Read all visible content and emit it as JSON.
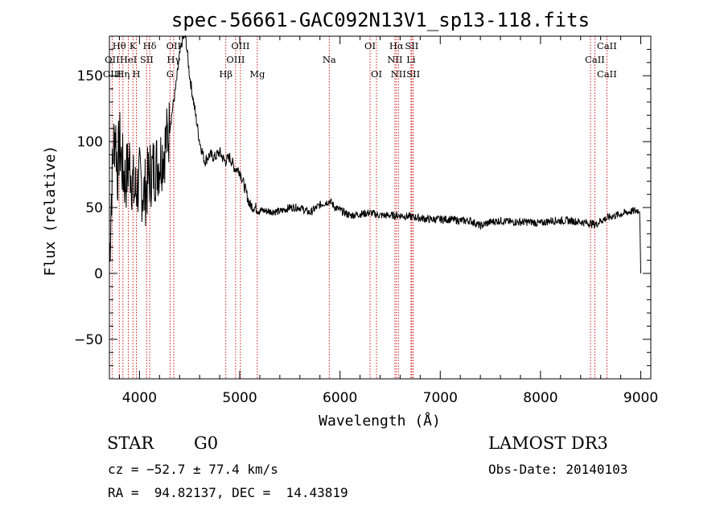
{
  "chart_data": {
    "type": "line",
    "title": "spec-56661-GAC092N13V1_sp13-118.fits",
    "xlabel": "Wavelength (Å)",
    "ylabel": "Flux (relative)",
    "xlim": [
      3700,
      9100
    ],
    "ylim": [
      -80,
      180
    ],
    "xticks": [
      4000,
      5000,
      6000,
      7000,
      8000,
      9000
    ],
    "xtick_labels": [
      "4000",
      "5000",
      "6000",
      "7000",
      "8000",
      "9000"
    ],
    "yticks": [
      -50,
      0,
      50,
      100,
      150
    ],
    "ytick_labels": [
      "−50",
      "0",
      "50",
      "100",
      "150"
    ],
    "spectrum_profile": {
      "x": [
        3700,
        3720,
        3740,
        3760,
        3780,
        3800,
        3830,
        3860,
        3900,
        3950,
        4000,
        4050,
        4100,
        4150,
        4200,
        4250,
        4300,
        4330,
        4360,
        4400,
        4430,
        4460,
        4500,
        4550,
        4600,
        4650,
        4700,
        4750,
        4800,
        4850,
        4900,
        4950,
        5000,
        5050,
        5100,
        5150,
        5200,
        5300,
        5400,
        5500,
        5600,
        5700,
        5800,
        5900,
        5950,
        6000,
        6100,
        6200,
        6300,
        6400,
        6500,
        6600,
        6700,
        6800,
        6900,
        7000,
        7100,
        7200,
        7300,
        7400,
        7500,
        7600,
        7700,
        7800,
        7900,
        8000,
        8100,
        8200,
        8300,
        8400,
        8500,
        8550,
        8600,
        8700,
        8800,
        8900,
        8990,
        9000
      ],
      "y": [
        10,
        60,
        95,
        110,
        75,
        100,
        80,
        70,
        85,
        60,
        70,
        60,
        75,
        80,
        85,
        95,
        110,
        125,
        140,
        165,
        178,
        180,
        150,
        125,
        100,
        85,
        90,
        88,
        92,
        85,
        88,
        80,
        78,
        65,
        52,
        50,
        48,
        47,
        47,
        50,
        50,
        46,
        52,
        55,
        50,
        48,
        44,
        45,
        46,
        44,
        44,
        44,
        43,
        42,
        41,
        41,
        41,
        40,
        40,
        36,
        39,
        40,
        39,
        39,
        39,
        38,
        40,
        40,
        40,
        39,
        38,
        37,
        40,
        43,
        45,
        47,
        48,
        0
      ]
    },
    "emission_lines": [
      {
        "label": "Hθ",
        "wavelength": 3798,
        "row": 0
      },
      {
        "label": "K",
        "wavelength": 3934,
        "row": 0
      },
      {
        "label": "Hδ",
        "wavelength": 4102,
        "row": 0
      },
      {
        "label": "OII",
        "wavelength": 4341,
        "row": 0
      },
      {
        "label": "OIII",
        "wavelength": 5007,
        "row": 0
      },
      {
        "label": "OI",
        "wavelength": 6300,
        "row": 0
      },
      {
        "label": "Hα",
        "wavelength": 6563,
        "row": 0
      },
      {
        "label": "SII",
        "wavelength": 6716,
        "row": 0
      },
      {
        "label": "CaII",
        "wavelength": 8662,
        "row": 0
      },
      {
        "label": "OII",
        "wavelength": 3727,
        "row": 1
      },
      {
        "label": "HeI",
        "wavelength": 3889,
        "row": 1
      },
      {
        "label": "SII",
        "wavelength": 4072,
        "row": 1
      },
      {
        "label": "Hγ",
        "wavelength": 4341,
        "row": 1
      },
      {
        "label": "OIII",
        "wavelength": 4959,
        "row": 1
      },
      {
        "label": "Na",
        "wavelength": 5893,
        "row": 1
      },
      {
        "label": "NII",
        "wavelength": 6548,
        "row": 1
      },
      {
        "label": "Li",
        "wavelength": 6708,
        "row": 1
      },
      {
        "label": "CaII",
        "wavelength": 8542,
        "row": 1
      },
      {
        "label": "OIII",
        "wavelength": 3727,
        "row": 2
      },
      {
        "label": "Hη",
        "wavelength": 3835,
        "row": 2
      },
      {
        "label": "H",
        "wavelength": 3969,
        "row": 2
      },
      {
        "label": "G",
        "wavelength": 4305,
        "row": 2
      },
      {
        "label": "Hβ",
        "wavelength": 4861,
        "row": 2
      },
      {
        "label": "Mg",
        "wavelength": 5175,
        "row": 2
      },
      {
        "label": "OI",
        "wavelength": 6364,
        "row": 2
      },
      {
        "label": "NII",
        "wavelength": 6583,
        "row": 2
      },
      {
        "label": "SII",
        "wavelength": 6731,
        "row": 2
      },
      {
        "label": "CaII",
        "wavelength": 8662,
        "row": 2
      }
    ],
    "line_markers": [
      3727,
      3798,
      3835,
      3889,
      3934,
      3969,
      4072,
      4102,
      4305,
      4341,
      4861,
      4959,
      5007,
      5175,
      5893,
      6300,
      6364,
      6548,
      6563,
      6583,
      6708,
      6716,
      6731,
      8498,
      8542,
      8662
    ],
    "line_color": "#000000",
    "marker_color": "#cc0000"
  },
  "info": {
    "object_class": "STAR",
    "subclass": "G0",
    "survey": "LAMOST DR3",
    "cz": "cz = −52.7 ± 77.4 km/s",
    "obs_date": "Obs-Date: 20140103",
    "radec": "RA =  94.82137, DEC =  14.43819"
  }
}
